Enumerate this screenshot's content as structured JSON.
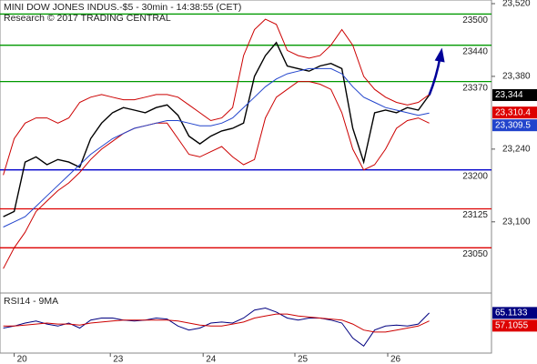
{
  "chart_data": [
    {
      "type": "line",
      "title": "MINI DOW JONES INDUS.-$5 - 30min - 14:38:55 (CET)",
      "subtitle": "Research © 2017 TRADING CENTRAL",
      "x": [
        0,
        1,
        2,
        3,
        4,
        5,
        6,
        7,
        8,
        9,
        10,
        11,
        12,
        13,
        14,
        15,
        16,
        17,
        18,
        19,
        20,
        21,
        22,
        23,
        24,
        25,
        26,
        27,
        28,
        29,
        30,
        31,
        32,
        33,
        34,
        35,
        36,
        37,
        38,
        39
      ],
      "xlim": [
        -0.3,
        44.7
      ],
      "ylim": [
        22963,
        23527
      ],
      "yticks": [
        {
          "value": 23520,
          "label": "23,520"
        },
        {
          "value": 23380,
          "label": "23,380"
        },
        {
          "value": 23240,
          "label": "23,240"
        },
        {
          "value": 23100,
          "label": "23,100"
        }
      ],
      "series": [
        {
          "color": "#000000",
          "values": [
            23110,
            23120,
            23215,
            23225,
            23210,
            23220,
            23215,
            23205,
            23260,
            23290,
            23310,
            23320,
            23315,
            23310,
            23320,
            23325,
            23305,
            23265,
            23250,
            23265,
            23275,
            23280,
            23290,
            23380,
            23420,
            23445,
            23400,
            23395,
            23390,
            23400,
            23405,
            23395,
            23280,
            23215,
            23310,
            23315,
            23310,
            23320,
            23315,
            23344
          ]
        },
        {
          "color": "#cc0000",
          "values": [
            23190,
            23260,
            23290,
            23300,
            23300,
            23290,
            23300,
            23330,
            23340,
            23345,
            23340,
            23335,
            23335,
            23340,
            23345,
            23345,
            23340,
            23325,
            23310,
            23295,
            23300,
            23320,
            23420,
            23470,
            23490,
            23480,
            23430,
            23420,
            23415,
            23420,
            23440,
            23470,
            23440,
            23380,
            23355,
            23340,
            23330,
            23325,
            23330,
            23345
          ]
        },
        {
          "color": "#cc0000",
          "values": [
            23010,
            23050,
            23080,
            23120,
            23140,
            23160,
            23175,
            23195,
            23220,
            23240,
            23255,
            23270,
            23280,
            23285,
            23290,
            23290,
            23260,
            23230,
            23225,
            23235,
            23245,
            23225,
            23210,
            23220,
            23300,
            23340,
            23355,
            23370,
            23370,
            23365,
            23355,
            23310,
            23240,
            23200,
            23210,
            23240,
            23280,
            23295,
            23300,
            23290
          ]
        },
        {
          "color": "#2244cc",
          "values": [
            23090,
            23100,
            23110,
            23130,
            23150,
            23170,
            23190,
            23210,
            23230,
            23245,
            23260,
            23270,
            23280,
            23285,
            23290,
            23295,
            23295,
            23290,
            23285,
            23285,
            23290,
            23300,
            23320,
            23340,
            23360,
            23375,
            23385,
            23390,
            23395,
            23395,
            23395,
            23385,
            23360,
            23340,
            23330,
            23320,
            23315,
            23310,
            23305,
            23309.5
          ]
        }
      ],
      "levels": [
        {
          "value": 23500,
          "color": "#009900"
        },
        {
          "value": 23440,
          "color": "#009900"
        },
        {
          "value": 23370,
          "color": "#009900"
        },
        {
          "value": 23200,
          "color": "#0000cc"
        },
        {
          "value": 23125,
          "color": "#dd0000"
        },
        {
          "value": 23050,
          "color": "#dd0000"
        }
      ],
      "price_tags": [
        {
          "value": 23344,
          "label": "23,344",
          "color": "#000000"
        },
        {
          "value": 23310.4,
          "label": "23,310.4",
          "color": "#dd0000"
        },
        {
          "value": 23309.5,
          "label": "23,309.5",
          "color": "#2244cc"
        }
      ]
    },
    {
      "type": "line",
      "title": "RSI14 - 9MA",
      "x": [
        0,
        1,
        2,
        3,
        4,
        5,
        6,
        7,
        8,
        9,
        10,
        11,
        12,
        13,
        14,
        15,
        16,
        17,
        18,
        19,
        20,
        21,
        22,
        23,
        24,
        25,
        26,
        27,
        28,
        29,
        30,
        31,
        32,
        33,
        34,
        35,
        36,
        37,
        38,
        39
      ],
      "xlim": [
        -0.3,
        44.7
      ],
      "ylim": [
        25,
        85
      ],
      "xticks": [
        {
          "value": 1,
          "label": "20"
        },
        {
          "value": 9.8,
          "label": "23"
        },
        {
          "value": 18.3,
          "label": "24"
        },
        {
          "value": 26.7,
          "label": "25"
        },
        {
          "value": 35.2,
          "label": "26"
        }
      ],
      "series": [
        {
          "color": "#000080",
          "values": [
            50,
            52,
            55,
            57,
            54,
            52,
            55,
            50,
            58,
            60,
            60,
            58,
            57,
            58,
            60,
            59,
            52,
            48,
            50,
            55,
            56,
            55,
            60,
            68,
            70,
            66,
            60,
            58,
            60,
            60,
            58,
            55,
            40,
            32,
            48,
            52,
            53,
            52,
            54,
            65.1133
          ]
        },
        {
          "color": "#cc0000",
          "values": [
            52,
            52,
            53,
            54,
            55,
            54,
            54,
            53,
            55,
            56,
            57,
            58,
            58,
            58,
            58,
            58,
            57,
            55,
            53,
            52,
            52,
            54,
            56,
            60,
            62,
            64,
            64,
            62,
            61,
            60,
            59,
            58,
            54,
            48,
            46,
            46,
            48,
            50,
            52,
            57.1055
          ]
        }
      ],
      "price_tags": [
        {
          "value": 65.1133,
          "color": "#000080"
        },
        {
          "value": 57.1055,
          "color": "#dd0000"
        }
      ]
    }
  ]
}
